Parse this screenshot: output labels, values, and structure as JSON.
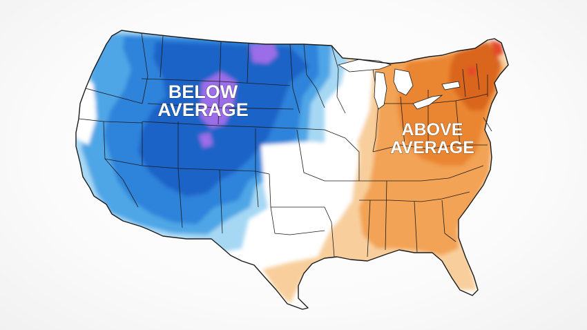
{
  "map": {
    "labels": {
      "below_line1": "BELOW",
      "below_line2": "AVERAGE",
      "above_line1": "ABOVE",
      "above_line2": "AVERAGE"
    },
    "colors": {
      "cool_light": "#a6d8f4",
      "cool_mid": "#4fa6e6",
      "cool_strong": "#2f83da",
      "cool_deep": "#1d63c8",
      "cool_extreme": "#9b6de8",
      "warm_light": "#f8cf9c",
      "warm_mid": "#f2a354",
      "warm_strong": "#ea8630",
      "warm_deep": "#d9661b",
      "warm_extreme": "#e4482a",
      "borders": "#1a1a1a"
    }
  }
}
